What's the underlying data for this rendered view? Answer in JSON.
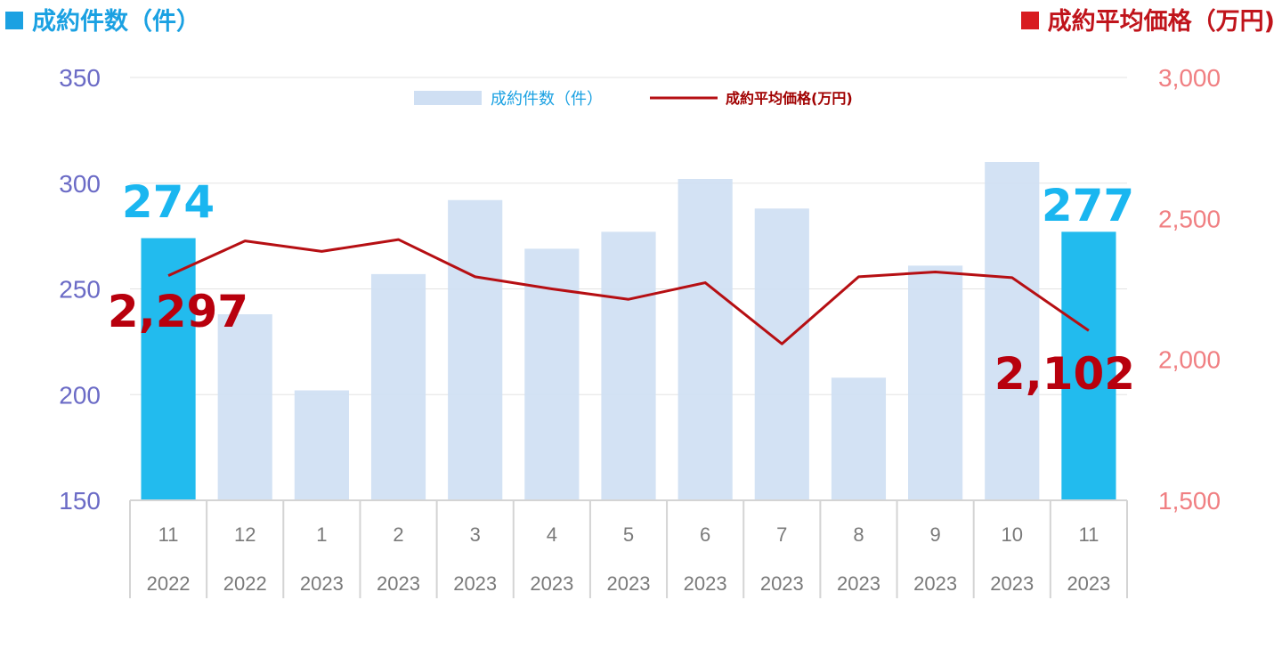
{
  "titles": {
    "left": "成約件数（件）",
    "right": "成約平均価格（万円)"
  },
  "colors": {
    "bar_normal": "#cfdff3",
    "bar_highlight": "#22bbee",
    "line": "#b60f13",
    "left_axis_text": "#6b6bc6",
    "right_axis_text": "#f07f82"
  },
  "chart_data": {
    "type": "bar+line",
    "categories": [
      "11",
      "12",
      "1",
      "2",
      "3",
      "4",
      "5",
      "6",
      "7",
      "8",
      "9",
      "10",
      "11"
    ],
    "years": [
      "2022",
      "2022",
      "2023",
      "2023",
      "2023",
      "2023",
      "2023",
      "2023",
      "2023",
      "2023",
      "2023",
      "2023",
      "2023"
    ],
    "series": [
      {
        "name": "成約件数（件）",
        "type": "bar",
        "axis": "left",
        "values": [
          274,
          238,
          202,
          257,
          292,
          269,
          277,
          302,
          288,
          208,
          261,
          310,
          277
        ],
        "highlight": [
          0,
          12
        ]
      },
      {
        "name": "成約平均価格(万円)",
        "type": "line",
        "axis": "right",
        "values": [
          2297,
          2420,
          2383,
          2425,
          2293,
          2250,
          2213,
          2272,
          2055,
          2293,
          2310,
          2290,
          2102
        ]
      }
    ],
    "yleft": {
      "min": 150,
      "max": 350,
      "ticks": [
        150,
        200,
        250,
        300,
        350
      ],
      "tick_labels": [
        "150",
        "200",
        "250",
        "300",
        "350"
      ]
    },
    "yright": {
      "min": 1500,
      "max": 3000,
      "ticks": [
        1500,
        2000,
        2500,
        3000
      ],
      "tick_labels": [
        "1,500",
        "2,000",
        "2,500",
        "3,000"
      ]
    },
    "data_labels": {
      "bar_first": "274",
      "bar_last": "277",
      "line_first": "2,297",
      "line_last": "2,102"
    },
    "legend": {
      "position": "top-center"
    },
    "grid": true
  }
}
